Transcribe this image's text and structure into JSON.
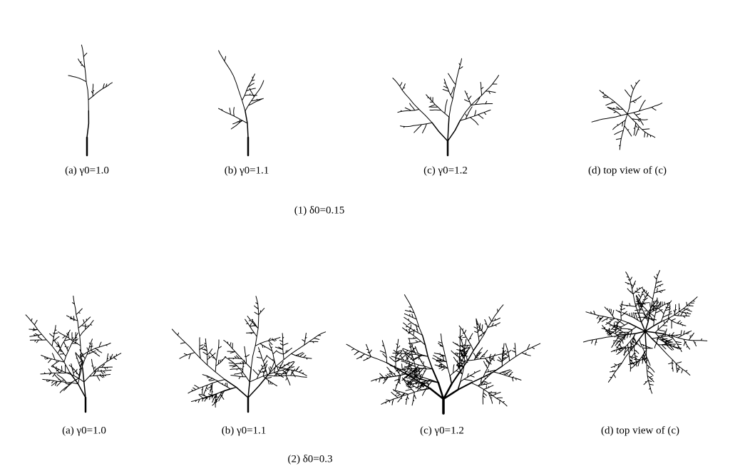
{
  "figure": {
    "rows": [
      {
        "caption": "(1) δ0=0.15",
        "panels": [
          {
            "caption": "(a) γ0=1.0"
          },
          {
            "caption": "(b) γ0=1.1"
          },
          {
            "caption": "(c) γ0=1.2"
          },
          {
            "caption": "(d) top view of (c)"
          }
        ]
      },
      {
        "caption": "(2) δ0=0.3",
        "panels": [
          {
            "caption": "(a) γ0=1.0"
          },
          {
            "caption": "(b) γ0=1.1"
          },
          {
            "caption": "(c) γ0=1.2"
          },
          {
            "caption": "(d) top view of (c)"
          }
        ]
      }
    ]
  }
}
